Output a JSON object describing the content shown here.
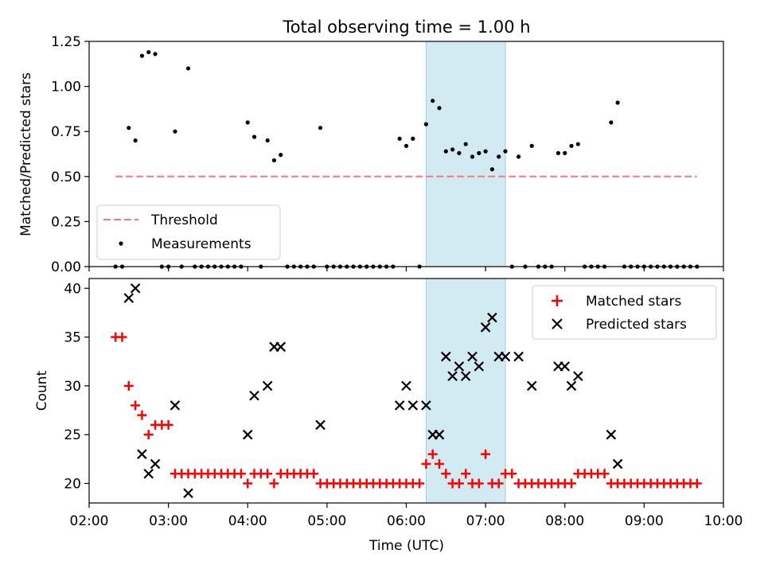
{
  "figure": {
    "title": "Total observing time = 1.00 h"
  },
  "chart_data": [
    {
      "type": "scatter",
      "title": "Total observing time = 1.00 h",
      "xlabel": "",
      "ylabel": "Matched/Predicted stars",
      "xlim": [
        "02:00",
        "10:00"
      ],
      "ylim": [
        0,
        1.25
      ],
      "yticks": [
        "0.00",
        "0.25",
        "0.50",
        "0.75",
        "1.00",
        "1.25"
      ],
      "highlight_span": [
        "06:15",
        "07:15"
      ],
      "highlight_color": "#add8e6",
      "legend": {
        "position": "lower-left",
        "threshold_label": "Threshold",
        "measurements_label": "Measurements"
      },
      "threshold": {
        "value": 0.5,
        "x_range": [
          "02:20",
          "09:40"
        ],
        "color": "#ff7777"
      },
      "measurements": [
        {
          "x": "02:20",
          "y": 0
        },
        {
          "x": "02:25",
          "y": 0
        },
        {
          "x": "02:30",
          "y": 0.77
        },
        {
          "x": "02:35",
          "y": 0.7
        },
        {
          "x": "02:40",
          "y": 1.17
        },
        {
          "x": "02:45",
          "y": 1.19
        },
        {
          "x": "02:50",
          "y": 1.18
        },
        {
          "x": "02:55",
          "y": 0
        },
        {
          "x": "03:00",
          "y": 0
        },
        {
          "x": "03:05",
          "y": 0.75
        },
        {
          "x": "03:10",
          "y": 0
        },
        {
          "x": "03:15",
          "y": 1.1
        },
        {
          "x": "03:20",
          "y": 0
        },
        {
          "x": "03:25",
          "y": 0
        },
        {
          "x": "03:30",
          "y": 0
        },
        {
          "x": "03:35",
          "y": 0
        },
        {
          "x": "03:40",
          "y": 0
        },
        {
          "x": "03:45",
          "y": 0
        },
        {
          "x": "03:50",
          "y": 0
        },
        {
          "x": "03:55",
          "y": 0
        },
        {
          "x": "04:00",
          "y": 0.8
        },
        {
          "x": "04:05",
          "y": 0.72
        },
        {
          "x": "04:10",
          "y": 0
        },
        {
          "x": "04:15",
          "y": 0.7
        },
        {
          "x": "04:20",
          "y": 0.59
        },
        {
          "x": "04:25",
          "y": 0.62
        },
        {
          "x": "04:30",
          "y": 0
        },
        {
          "x": "04:35",
          "y": 0
        },
        {
          "x": "04:40",
          "y": 0
        },
        {
          "x": "04:45",
          "y": 0
        },
        {
          "x": "04:50",
          "y": 0
        },
        {
          "x": "04:55",
          "y": 0.77
        },
        {
          "x": "05:00",
          "y": 0
        },
        {
          "x": "05:05",
          "y": 0
        },
        {
          "x": "05:10",
          "y": 0
        },
        {
          "x": "05:15",
          "y": 0
        },
        {
          "x": "05:20",
          "y": 0
        },
        {
          "x": "05:25",
          "y": 0
        },
        {
          "x": "05:30",
          "y": 0
        },
        {
          "x": "05:35",
          "y": 0
        },
        {
          "x": "05:40",
          "y": 0
        },
        {
          "x": "05:45",
          "y": 0
        },
        {
          "x": "05:50",
          "y": 0
        },
        {
          "x": "05:55",
          "y": 0.71
        },
        {
          "x": "06:00",
          "y": 0.67
        },
        {
          "x": "06:05",
          "y": 0.71
        },
        {
          "x": "06:10",
          "y": 0
        },
        {
          "x": "06:15",
          "y": 0.79
        },
        {
          "x": "06:20",
          "y": 0.92
        },
        {
          "x": "06:25",
          "y": 0.88
        },
        {
          "x": "06:30",
          "y": 0.64
        },
        {
          "x": "06:35",
          "y": 0.65
        },
        {
          "x": "06:40",
          "y": 0.63
        },
        {
          "x": "06:45",
          "y": 0.68
        },
        {
          "x": "06:50",
          "y": 0.61
        },
        {
          "x": "06:55",
          "y": 0.63
        },
        {
          "x": "07:00",
          "y": 0.64
        },
        {
          "x": "07:05",
          "y": 0.54
        },
        {
          "x": "07:10",
          "y": 0.61
        },
        {
          "x": "07:15",
          "y": 0.64
        },
        {
          "x": "07:20",
          "y": 0
        },
        {
          "x": "07:25",
          "y": 0.61
        },
        {
          "x": "07:30",
          "y": 0
        },
        {
          "x": "07:35",
          "y": 0.67
        },
        {
          "x": "07:40",
          "y": 0
        },
        {
          "x": "07:45",
          "y": 0
        },
        {
          "x": "07:50",
          "y": 0
        },
        {
          "x": "07:55",
          "y": 0.63
        },
        {
          "x": "08:00",
          "y": 0.63
        },
        {
          "x": "08:05",
          "y": 0.67
        },
        {
          "x": "08:10",
          "y": 0.68
        },
        {
          "x": "08:15",
          "y": 0
        },
        {
          "x": "08:20",
          "y": 0
        },
        {
          "x": "08:25",
          "y": 0
        },
        {
          "x": "08:30",
          "y": 0
        },
        {
          "x": "08:35",
          "y": 0.8
        },
        {
          "x": "08:40",
          "y": 0.91
        },
        {
          "x": "08:45",
          "y": 0
        },
        {
          "x": "08:50",
          "y": 0
        },
        {
          "x": "08:55",
          "y": 0
        },
        {
          "x": "09:00",
          "y": 0
        },
        {
          "x": "09:05",
          "y": 0
        },
        {
          "x": "09:10",
          "y": 0
        },
        {
          "x": "09:15",
          "y": 0
        },
        {
          "x": "09:20",
          "y": 0
        },
        {
          "x": "09:25",
          "y": 0
        },
        {
          "x": "09:30",
          "y": 0
        },
        {
          "x": "09:35",
          "y": 0
        },
        {
          "x": "09:40",
          "y": 0
        }
      ]
    },
    {
      "type": "scatter",
      "xlabel": "Time (UTC)",
      "ylabel": "Count",
      "xlim": [
        "02:00",
        "10:00"
      ],
      "ylim": [
        18,
        41
      ],
      "xticks": [
        "02:00",
        "03:00",
        "04:00",
        "05:00",
        "06:00",
        "07:00",
        "08:00",
        "09:00",
        "10:00"
      ],
      "yticks": [
        "20",
        "25",
        "30",
        "35",
        "40"
      ],
      "highlight_span": [
        "06:15",
        "07:15"
      ],
      "legend": {
        "position": "upper-right",
        "matched_label": "Matched stars",
        "predicted_label": "Predicted stars"
      },
      "series": [
        {
          "name": "Matched stars",
          "marker": "+",
          "color": "#ff0000",
          "points": [
            {
              "x": "02:20",
              "y": 35
            },
            {
              "x": "02:25",
              "y": 35
            },
            {
              "x": "02:30",
              "y": 30
            },
            {
              "x": "02:35",
              "y": 28
            },
            {
              "x": "02:40",
              "y": 27
            },
            {
              "x": "02:45",
              "y": 25
            },
            {
              "x": "02:50",
              "y": 26
            },
            {
              "x": "02:55",
              "y": 26
            },
            {
              "x": "03:00",
              "y": 26
            },
            {
              "x": "03:05",
              "y": 21
            },
            {
              "x": "03:10",
              "y": 21
            },
            {
              "x": "03:15",
              "y": 21
            },
            {
              "x": "03:20",
              "y": 21
            },
            {
              "x": "03:25",
              "y": 21
            },
            {
              "x": "03:30",
              "y": 21
            },
            {
              "x": "03:35",
              "y": 21
            },
            {
              "x": "03:40",
              "y": 21
            },
            {
              "x": "03:45",
              "y": 21
            },
            {
              "x": "03:50",
              "y": 21
            },
            {
              "x": "03:55",
              "y": 21
            },
            {
              "x": "04:00",
              "y": 20
            },
            {
              "x": "04:05",
              "y": 21
            },
            {
              "x": "04:10",
              "y": 21
            },
            {
              "x": "04:15",
              "y": 21
            },
            {
              "x": "04:20",
              "y": 20
            },
            {
              "x": "04:25",
              "y": 21
            },
            {
              "x": "04:30",
              "y": 21
            },
            {
              "x": "04:35",
              "y": 21
            },
            {
              "x": "04:40",
              "y": 21
            },
            {
              "x": "04:45",
              "y": 21
            },
            {
              "x": "04:50",
              "y": 21
            },
            {
              "x": "04:55",
              "y": 20
            },
            {
              "x": "05:00",
              "y": 20
            },
            {
              "x": "05:05",
              "y": 20
            },
            {
              "x": "05:10",
              "y": 20
            },
            {
              "x": "05:15",
              "y": 20
            },
            {
              "x": "05:20",
              "y": 20
            },
            {
              "x": "05:25",
              "y": 20
            },
            {
              "x": "05:30",
              "y": 20
            },
            {
              "x": "05:35",
              "y": 20
            },
            {
              "x": "05:40",
              "y": 20
            },
            {
              "x": "05:45",
              "y": 20
            },
            {
              "x": "05:50",
              "y": 20
            },
            {
              "x": "05:55",
              "y": 20
            },
            {
              "x": "06:00",
              "y": 20
            },
            {
              "x": "06:05",
              "y": 20
            },
            {
              "x": "06:10",
              "y": 20
            },
            {
              "x": "06:15",
              "y": 22
            },
            {
              "x": "06:20",
              "y": 23
            },
            {
              "x": "06:25",
              "y": 22
            },
            {
              "x": "06:30",
              "y": 21
            },
            {
              "x": "06:35",
              "y": 20
            },
            {
              "x": "06:40",
              "y": 20
            },
            {
              "x": "06:45",
              "y": 21
            },
            {
              "x": "06:50",
              "y": 20
            },
            {
              "x": "06:55",
              "y": 20
            },
            {
              "x": "07:00",
              "y": 23
            },
            {
              "x": "07:05",
              "y": 20
            },
            {
              "x": "07:10",
              "y": 20
            },
            {
              "x": "07:15",
              "y": 21
            },
            {
              "x": "07:20",
              "y": 21
            },
            {
              "x": "07:25",
              "y": 20
            },
            {
              "x": "07:30",
              "y": 20
            },
            {
              "x": "07:35",
              "y": 20
            },
            {
              "x": "07:40",
              "y": 20
            },
            {
              "x": "07:45",
              "y": 20
            },
            {
              "x": "07:50",
              "y": 20
            },
            {
              "x": "07:55",
              "y": 20
            },
            {
              "x": "08:00",
              "y": 20
            },
            {
              "x": "08:05",
              "y": 20
            },
            {
              "x": "08:10",
              "y": 21
            },
            {
              "x": "08:15",
              "y": 21
            },
            {
              "x": "08:20",
              "y": 21
            },
            {
              "x": "08:25",
              "y": 21
            },
            {
              "x": "08:30",
              "y": 21
            },
            {
              "x": "08:35",
              "y": 20
            },
            {
              "x": "08:40",
              "y": 20
            },
            {
              "x": "08:45",
              "y": 20
            },
            {
              "x": "08:50",
              "y": 20
            },
            {
              "x": "08:55",
              "y": 20
            },
            {
              "x": "09:00",
              "y": 20
            },
            {
              "x": "09:05",
              "y": 20
            },
            {
              "x": "09:10",
              "y": 20
            },
            {
              "x": "09:15",
              "y": 20
            },
            {
              "x": "09:20",
              "y": 20
            },
            {
              "x": "09:25",
              "y": 20
            },
            {
              "x": "09:30",
              "y": 20
            },
            {
              "x": "09:35",
              "y": 20
            },
            {
              "x": "09:40",
              "y": 20
            }
          ]
        },
        {
          "name": "Predicted stars",
          "marker": "x",
          "color": "#000000",
          "points": [
            {
              "x": "02:30",
              "y": 39
            },
            {
              "x": "02:35",
              "y": 40
            },
            {
              "x": "02:40",
              "y": 23
            },
            {
              "x": "02:45",
              "y": 21
            },
            {
              "x": "02:50",
              "y": 22
            },
            {
              "x": "03:05",
              "y": 28
            },
            {
              "x": "03:15",
              "y": 19
            },
            {
              "x": "04:00",
              "y": 25
            },
            {
              "x": "04:05",
              "y": 29
            },
            {
              "x": "04:15",
              "y": 30
            },
            {
              "x": "04:20",
              "y": 34
            },
            {
              "x": "04:25",
              "y": 34
            },
            {
              "x": "04:55",
              "y": 26
            },
            {
              "x": "05:55",
              "y": 28
            },
            {
              "x": "06:00",
              "y": 30
            },
            {
              "x": "06:05",
              "y": 28
            },
            {
              "x": "06:15",
              "y": 28
            },
            {
              "x": "06:20",
              "y": 25
            },
            {
              "x": "06:25",
              "y": 25
            },
            {
              "x": "06:30",
              "y": 33
            },
            {
              "x": "06:35",
              "y": 31
            },
            {
              "x": "06:40",
              "y": 32
            },
            {
              "x": "06:45",
              "y": 31
            },
            {
              "x": "06:50",
              "y": 33
            },
            {
              "x": "06:55",
              "y": 32
            },
            {
              "x": "07:00",
              "y": 36
            },
            {
              "x": "07:05",
              "y": 37
            },
            {
              "x": "07:10",
              "y": 33
            },
            {
              "x": "07:15",
              "y": 33
            },
            {
              "x": "07:25",
              "y": 33
            },
            {
              "x": "07:35",
              "y": 30
            },
            {
              "x": "07:55",
              "y": 32
            },
            {
              "x": "08:00",
              "y": 32
            },
            {
              "x": "08:05",
              "y": 30
            },
            {
              "x": "08:10",
              "y": 31
            },
            {
              "x": "08:35",
              "y": 25
            },
            {
              "x": "08:40",
              "y": 22
            }
          ]
        }
      ]
    }
  ]
}
